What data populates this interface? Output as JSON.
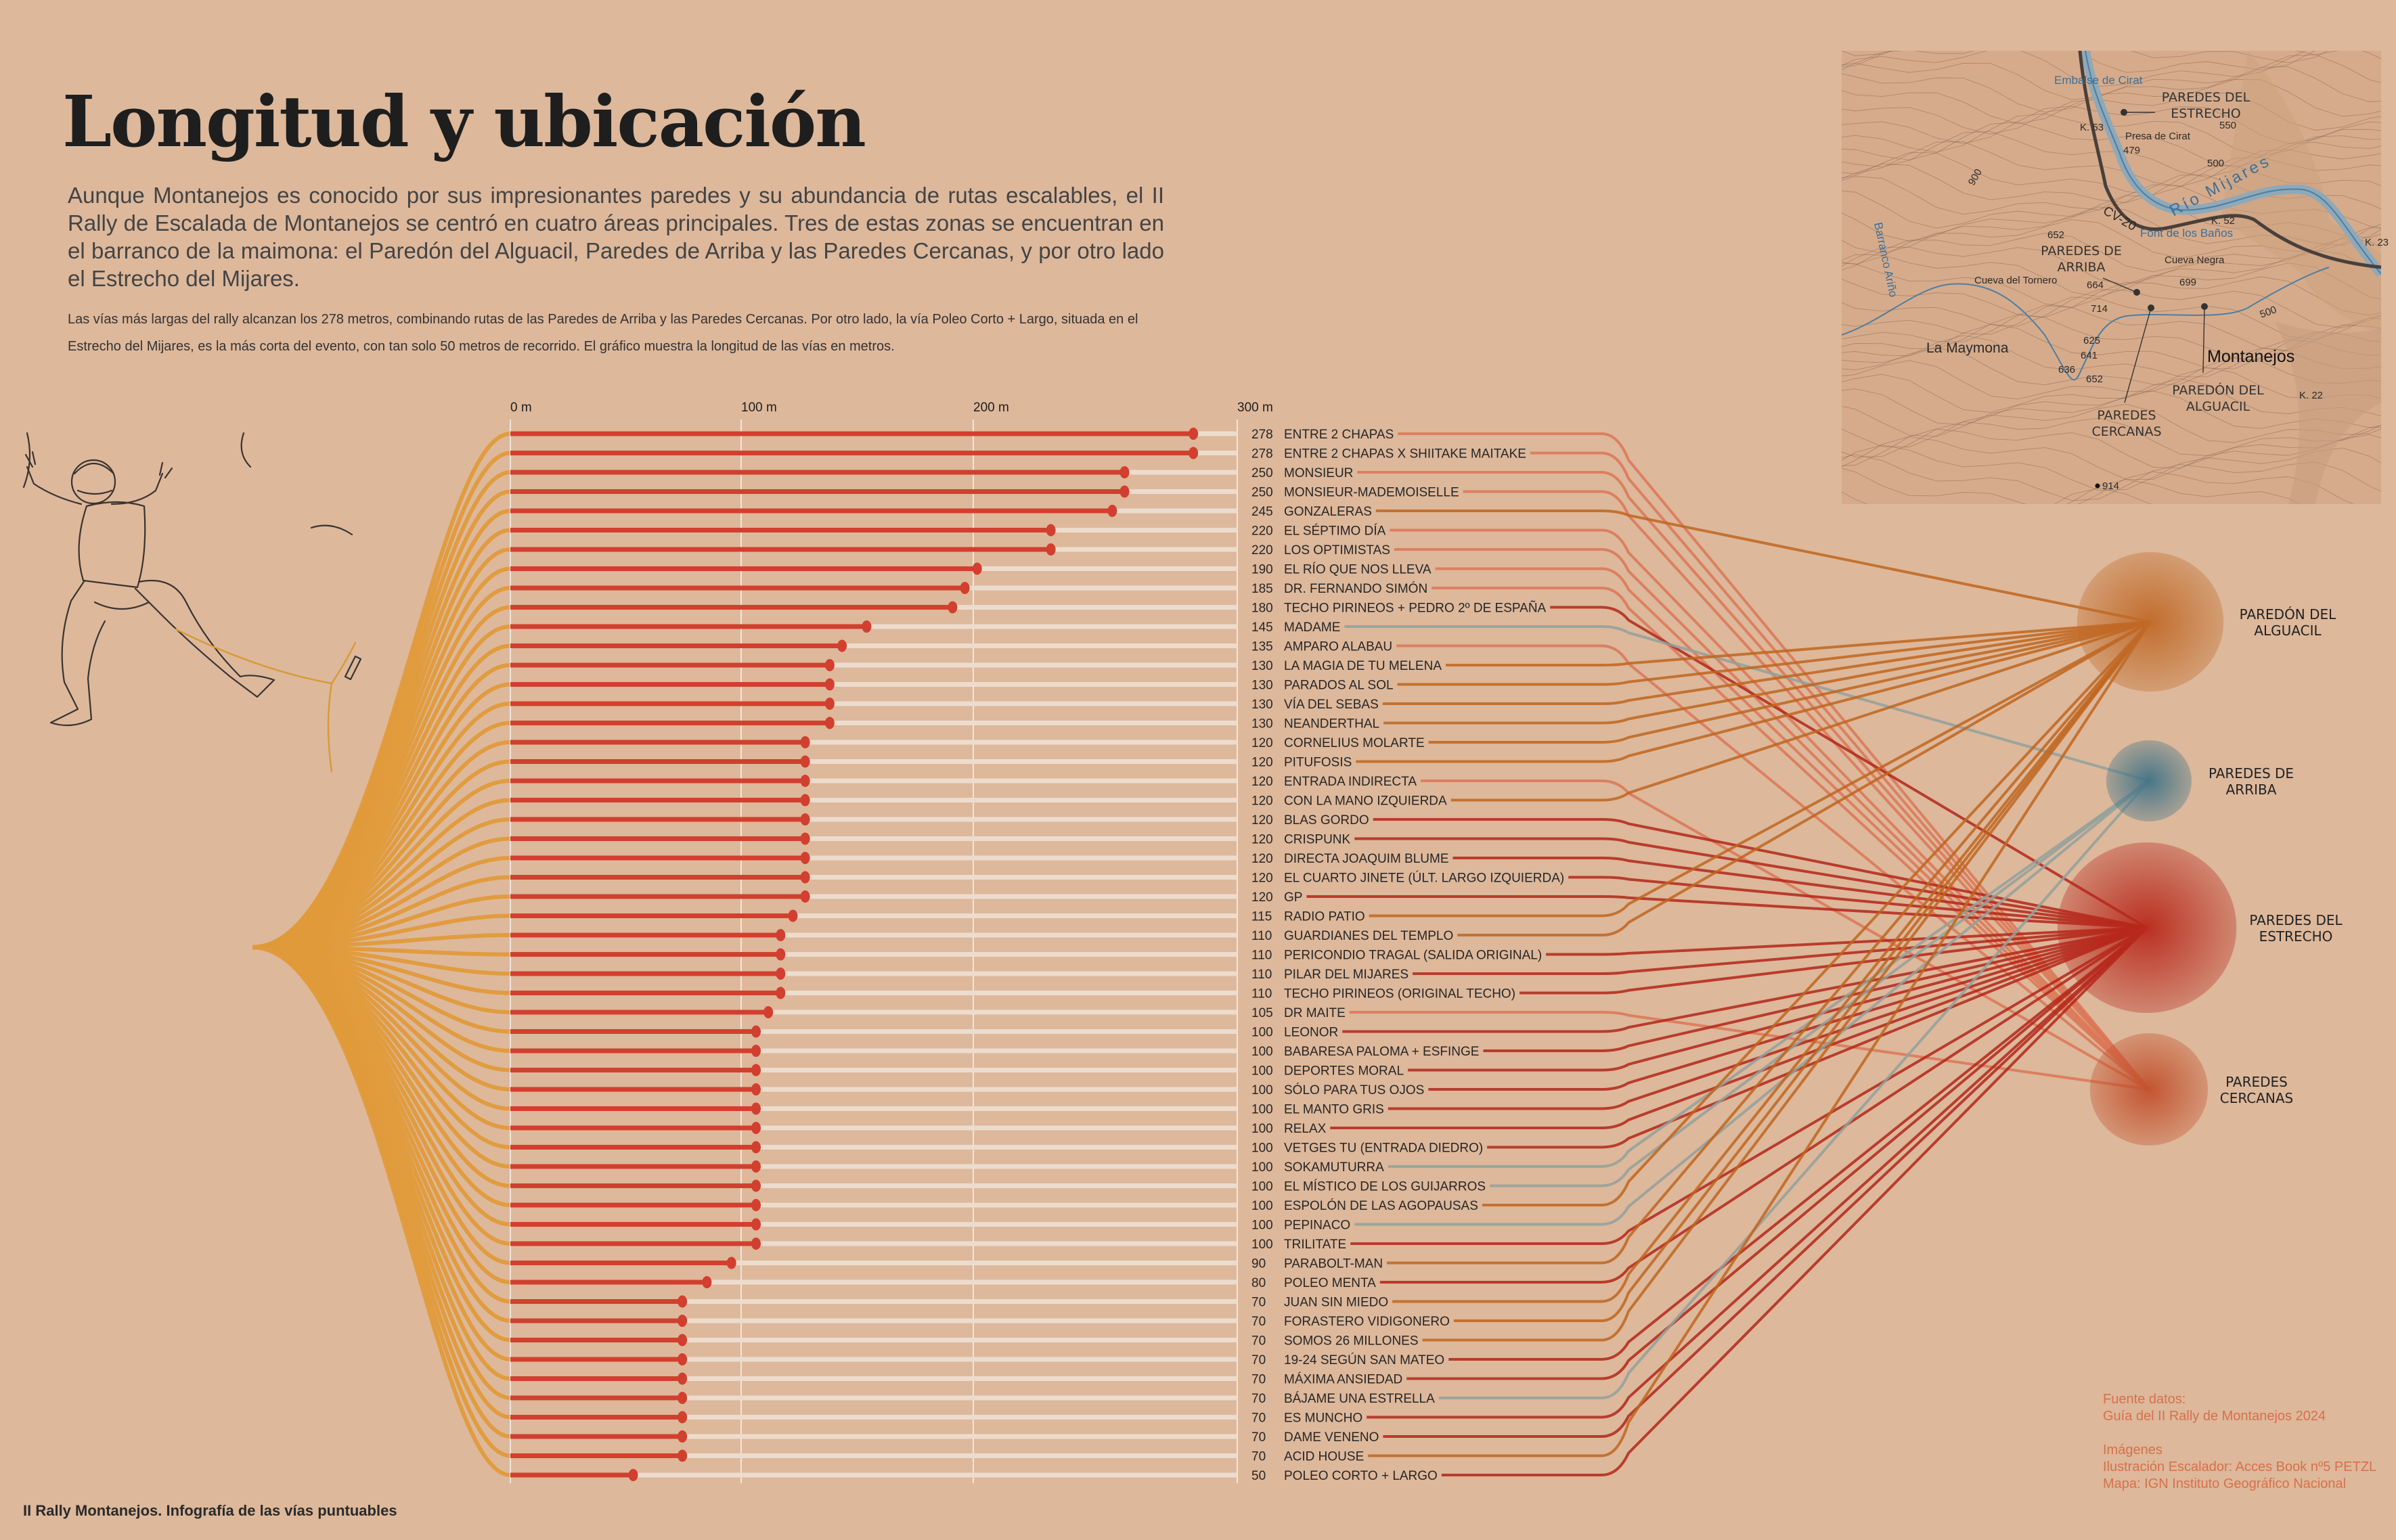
{
  "header": {
    "title": "Longitud y ubicación",
    "intro": "Aunque Montanejos es conocido por sus impresionantes paredes y su abundancia de rutas escalables, el II Rally de Escalada de Montanejos se centró en cuatro áreas principales. Tres de estas zonas se encuentran en el barranco de la maimona: el Paredón del Alguacil, Paredes de Arriba y las Paredes Cercanas, y por otro lado el Estrecho del Mijares.",
    "note": "Las vías más largas del rally alcanzan los 278 metros, combinando rutas de las Paredes de Arriba y las Paredes Cercanas. Por otro lado, la vía Poleo Corto + Largo, situada en el Estrecho del Mijares, es la más corta del evento, con tan solo 50 metros de recorrido. El gráfico muestra la longitud de las vías en metros."
  },
  "chart_data": {
    "type": "bar",
    "orientation": "horizontal",
    "unit": "m",
    "xlim": [
      0,
      300
    ],
    "ticks": [
      {
        "value": 0,
        "label": "0 m"
      },
      {
        "value": 100,
        "label": "100 m"
      },
      {
        "value": 200,
        "label": "200 m"
      },
      {
        "value": 300,
        "label": "300 m"
      }
    ],
    "grid": true,
    "areas": [
      {
        "id": "alguacil",
        "label": [
          "PAREDÓN DEL",
          "ALGUACIL"
        ],
        "color": "#c0651e",
        "bubble": "#c06a28"
      },
      {
        "id": "arriba",
        "label": [
          "PAREDES DE",
          "ARRIBA"
        ],
        "color": "#92a09c",
        "bubble": "#3f7387"
      },
      {
        "id": "estrecho",
        "label": [
          "PAREDES DEL",
          "ESTRECHO"
        ],
        "color": "#b3261a",
        "bubble": "#b8281c"
      },
      {
        "id": "cercanas",
        "label": [
          "PAREDES",
          "CERCANAS"
        ],
        "color": "#dc7556",
        "bubble": "#c2502c"
      }
    ],
    "routes": [
      {
        "length": 278,
        "name": "ENTRE 2 CHAPAS",
        "area": "cercanas"
      },
      {
        "length": 278,
        "name": "ENTRE 2 CHAPAS X SHIITAKE MAITAKE",
        "area": "cercanas"
      },
      {
        "length": 250,
        "name": "MONSIEUR",
        "area": "cercanas"
      },
      {
        "length": 250,
        "name": "MONSIEUR-MADEMOISELLE",
        "area": "cercanas"
      },
      {
        "length": 245,
        "name": "GONZALERAS",
        "area": "alguacil"
      },
      {
        "length": 220,
        "name": "EL SÉPTIMO DÍA",
        "area": "cercanas"
      },
      {
        "length": 220,
        "name": "LOS OPTIMISTAS",
        "area": "cercanas"
      },
      {
        "length": 190,
        "name": "EL RÍO QUE NOS LLEVA",
        "area": "cercanas"
      },
      {
        "length": 185,
        "name": "DR. FERNANDO SIMÓN",
        "area": "cercanas"
      },
      {
        "length": 180,
        "name": "TECHO PIRINEOS + PEDRO 2º DE ESPAÑA",
        "area": "estrecho"
      },
      {
        "length": 145,
        "name": "MADAME",
        "area": "arriba"
      },
      {
        "length": 135,
        "name": "AMPARO ALABAU",
        "area": "cercanas"
      },
      {
        "length": 130,
        "name": "LA MAGIA DE TU MELENA",
        "area": "alguacil"
      },
      {
        "length": 130,
        "name": "PARADOS AL SOL",
        "area": "alguacil"
      },
      {
        "length": 130,
        "name": "VÍA DEL SEBAS",
        "area": "alguacil"
      },
      {
        "length": 130,
        "name": "NEANDERTHAL",
        "area": "alguacil"
      },
      {
        "length": 120,
        "name": "CORNELIUS MOLARTE",
        "area": "alguacil"
      },
      {
        "length": 120,
        "name": "PITUFOSIS",
        "area": "alguacil"
      },
      {
        "length": 120,
        "name": "ENTRADA INDIRECTA",
        "area": "cercanas"
      },
      {
        "length": 120,
        "name": "CON LA MANO IZQUIERDA",
        "area": "alguacil"
      },
      {
        "length": 120,
        "name": "BLAS GORDO",
        "area": "estrecho"
      },
      {
        "length": 120,
        "name": "CRISPUNK",
        "area": "estrecho"
      },
      {
        "length": 120,
        "name": "DIRECTA JOAQUIM BLUME",
        "area": "estrecho"
      },
      {
        "length": 120,
        "name": "EL CUARTO JINETE (ÚLT. LARGO IZQUIERDA)",
        "area": "estrecho"
      },
      {
        "length": 120,
        "name": "GP",
        "area": "estrecho"
      },
      {
        "length": 115,
        "name": "RADIO PATIO",
        "area": "alguacil"
      },
      {
        "length": 110,
        "name": "GUARDIANES DEL TEMPLO",
        "area": "alguacil"
      },
      {
        "length": 110,
        "name": "PERICONDIO TRAGAL (SALIDA ORIGINAL)",
        "area": "estrecho"
      },
      {
        "length": 110,
        "name": "PILAR DEL MIJARES",
        "area": "estrecho"
      },
      {
        "length": 110,
        "name": "TECHO PIRINEOS (ORIGINAL TECHO)",
        "area": "estrecho"
      },
      {
        "length": 105,
        "name": "DR MAITE",
        "area": "cercanas"
      },
      {
        "length": 100,
        "name": "LEONOR",
        "area": "estrecho"
      },
      {
        "length": 100,
        "name": "BABARESA PALOMA + ESFINGE",
        "area": "estrecho"
      },
      {
        "length": 100,
        "name": "DEPORTES MORAL",
        "area": "estrecho"
      },
      {
        "length": 100,
        "name": "SÓLO PARA TUS OJOS",
        "area": "estrecho"
      },
      {
        "length": 100,
        "name": "EL MANTO GRIS",
        "area": "estrecho"
      },
      {
        "length": 100,
        "name": "RELAX",
        "area": "estrecho"
      },
      {
        "length": 100,
        "name": "VETGES TU (ENTRADA DIEDRO)",
        "area": "estrecho"
      },
      {
        "length": 100,
        "name": "SOKAMUTURRA",
        "area": "arriba"
      },
      {
        "length": 100,
        "name": "EL MÍSTICO DE LOS GUIJARROS",
        "area": "arriba"
      },
      {
        "length": 100,
        "name": "ESPOLÓN DE LAS AGOPAUSAS",
        "area": "alguacil"
      },
      {
        "length": 100,
        "name": "PEPINACO",
        "area": "arriba"
      },
      {
        "length": 100,
        "name": "TRILITATE",
        "area": "estrecho"
      },
      {
        "length": 90,
        "name": "PARABOLT-MAN",
        "area": "alguacil"
      },
      {
        "length": 80,
        "name": "POLEO MENTA",
        "area": "estrecho"
      },
      {
        "length": 70,
        "name": "JUAN SIN MIEDO",
        "area": "alguacil"
      },
      {
        "length": 70,
        "name": "FORASTERO VIDIGONERO",
        "area": "alguacil"
      },
      {
        "length": 70,
        "name": "SOMOS 26 MILLONES",
        "area": "alguacil"
      },
      {
        "length": 70,
        "name": "19-24 SEGÚN SAN MATEO",
        "area": "estrecho"
      },
      {
        "length": 70,
        "name": "MÁXIMA ANSIEDAD",
        "area": "estrecho"
      },
      {
        "length": 70,
        "name": "BÁJAME UNA ESTRELLA",
        "area": "arriba"
      },
      {
        "length": 70,
        "name": "ES MUNCHO",
        "area": "estrecho"
      },
      {
        "length": 70,
        "name": "DAME VENENO",
        "area": "estrecho"
      },
      {
        "length": 70,
        "name": "ACID HOUSE",
        "area": "alguacil"
      },
      {
        "length": 50,
        "name": "POLEO CORTO + LARGO",
        "area": "estrecho"
      }
    ],
    "colors": {
      "bar": "#d23f2e",
      "fan": "#e09a3a",
      "track": "#eddccd"
    }
  },
  "map": {
    "labels": {
      "embalse": "Embalse de Cirat",
      "estrecho": [
        "PAREDES DEL",
        "ESTRECHO"
      ],
      "k53": "K. 53",
      "presa": "Presa de Cirat",
      "e479": "479",
      "e550": "550",
      "e500a": "500",
      "rio": "Río Mijares",
      "cv20": "CV-20",
      "k52": "K. 52",
      "font": "Font de los Baños",
      "e652a": "652",
      "arriba": [
        "PAREDES DE",
        "ARRIBA"
      ],
      "cuevanegra": "Cueva Negra",
      "tornero": "Cueva del Tornero",
      "e664": "664",
      "e699": "699",
      "e714": "714",
      "maymona": "La Maymona",
      "e625": "625",
      "e641": "641",
      "e636": "636",
      "e652b": "652",
      "montanejos": "Montanejos",
      "alguacil": [
        "PAREDÓN DEL",
        "ALGUACIL"
      ],
      "cercanas": [
        "PAREDES",
        "CERCANAS"
      ],
      "e914": "914",
      "barranco": "Barranco Ariño",
      "k23": "K. 23",
      "k22": "K. 22",
      "e900": "900",
      "e500b": "500"
    }
  },
  "footer": "II Rally Montanejos. Infografía de las vías puntuables",
  "credits": [
    "Fuente datos:",
    "Guía del II Rally de Montanejos 2024",
    "",
    "Imágenes",
    "Ilustración Escalador: Acces Book nº5 PETZL",
    "Mapa: IGN Instituto Geográfico Nacional"
  ]
}
